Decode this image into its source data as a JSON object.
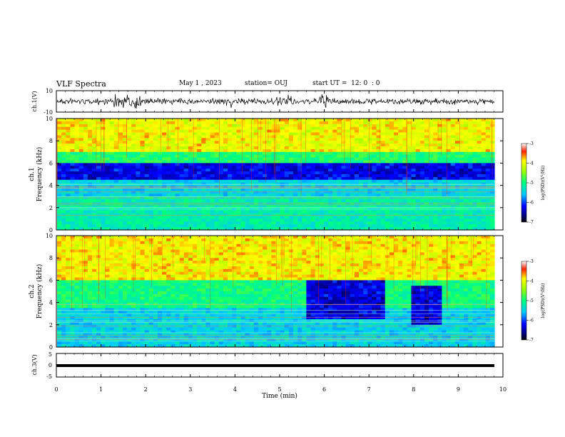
{
  "header": {
    "title": "VLF Spectra",
    "date": "May 1 , 2023",
    "station": "station= OUJ",
    "start": "start UT =  12: 0  : 0"
  },
  "chart_data": [
    {
      "type": "line",
      "name": "ch1-waveform",
      "ylabel": "ch.1(V)",
      "ylim": [
        -10,
        10
      ],
      "yticks": [
        "10",
        "-10"
      ],
      "x": [
        0,
        10
      ],
      "color": "#000000"
    },
    {
      "type": "heatmap",
      "name": "ch1-spectrogram",
      "ylabel_line1": "ch.1",
      "ylabel_line2": "Frequency (kHz)",
      "ylim": [
        0,
        10
      ],
      "yticks": [
        "0",
        "2",
        "4",
        "6",
        "8",
        "10"
      ],
      "colorbar": {
        "label": "log(PSD)(V²/Hz)",
        "ticks": [
          "-3",
          "-4",
          "-5",
          "-6",
          "-7"
        ],
        "range": [
          -7,
          -3
        ]
      }
    },
    {
      "type": "heatmap",
      "name": "ch2-spectrogram",
      "ylabel_line1": "ch.2",
      "ylabel_line2": "Frequency (kHz)",
      "ylim": [
        0,
        10
      ],
      "yticks": [
        "0",
        "2",
        "4",
        "6",
        "8",
        "10"
      ],
      "colorbar": {
        "label": "log(PSD)(V²/Hz)",
        "ticks": [
          "-3",
          "-4",
          "-5",
          "-6",
          "-7"
        ],
        "range": [
          -7,
          -3
        ]
      }
    },
    {
      "type": "line",
      "name": "ch3-waveform",
      "ylabel": "ch.3(V)",
      "ylim": [
        -5,
        5
      ],
      "yticks": [
        "5",
        "0",
        "-5"
      ],
      "color": "#000000"
    }
  ],
  "xaxis": {
    "label": "Time (min)",
    "xlim": [
      0,
      10
    ],
    "ticks": [
      "0",
      "1",
      "2",
      "3",
      "4",
      "5",
      "6",
      "7",
      "8",
      "9",
      "10"
    ]
  }
}
